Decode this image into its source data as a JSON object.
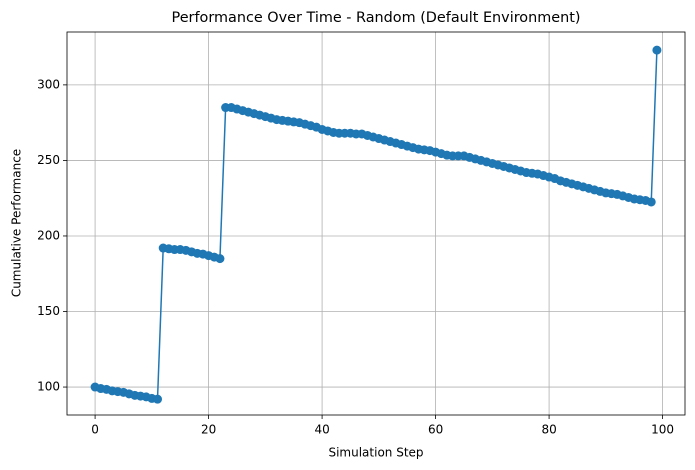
{
  "chart_data": {
    "type": "line",
    "title": "Performance Over Time - Random (Default Environment)",
    "xlabel": "Simulation Step",
    "ylabel": "Cumulative Performance",
    "x": [
      0,
      1,
      2,
      3,
      4,
      5,
      6,
      7,
      8,
      9,
      10,
      11,
      12,
      13,
      14,
      15,
      16,
      17,
      18,
      19,
      20,
      21,
      22,
      23,
      24,
      25,
      26,
      27,
      28,
      29,
      30,
      31,
      32,
      33,
      34,
      35,
      36,
      37,
      38,
      39,
      40,
      41,
      42,
      43,
      44,
      45,
      46,
      47,
      48,
      49,
      50,
      51,
      52,
      53,
      54,
      55,
      56,
      57,
      58,
      59,
      60,
      61,
      62,
      63,
      64,
      65,
      66,
      67,
      68,
      69,
      70,
      71,
      72,
      73,
      74,
      75,
      76,
      77,
      78,
      79,
      80,
      81,
      82,
      83,
      84,
      85,
      86,
      87,
      88,
      89,
      90,
      91,
      92,
      93,
      94,
      95,
      96,
      97,
      98,
      99
    ],
    "series": [
      {
        "name": "Random",
        "color": "#1f77b4",
        "values": [
          100,
          99,
          98.5,
          97.5,
          97,
          96.5,
          95.5,
          94.5,
          94,
          93.5,
          92.5,
          92,
          192,
          191.5,
          191,
          191,
          190.5,
          189.5,
          188.5,
          188,
          187,
          186,
          185,
          285,
          285,
          284,
          283,
          282,
          281,
          280,
          279,
          278,
          277,
          276.5,
          276,
          275.5,
          275,
          274,
          273,
          272,
          270.5,
          269.5,
          268.5,
          268,
          268,
          268,
          267.5,
          267.5,
          266.5,
          265.5,
          264.5,
          263.5,
          262.5,
          261.5,
          260.5,
          259.5,
          258.5,
          257.5,
          257,
          256.5,
          255.5,
          254.5,
          253.5,
          253,
          253,
          253,
          252,
          251,
          250,
          249,
          248,
          247,
          246,
          245,
          244,
          243,
          242,
          241.5,
          241,
          240,
          239,
          238,
          236.5,
          235.5,
          234.5,
          233.5,
          232.5,
          231.5,
          230.5,
          229.5,
          228.5,
          228,
          227.5,
          226.5,
          225.5,
          224.5,
          224,
          223.5,
          222.5,
          323
        ]
      }
    ],
    "xlim": [
      -4.95,
      103.95
    ],
    "ylim": [
      81.5,
      335
    ],
    "xticks": [
      0,
      20,
      40,
      60,
      80,
      100
    ],
    "yticks": [
      100,
      150,
      200,
      250,
      300
    ],
    "grid": true
  }
}
